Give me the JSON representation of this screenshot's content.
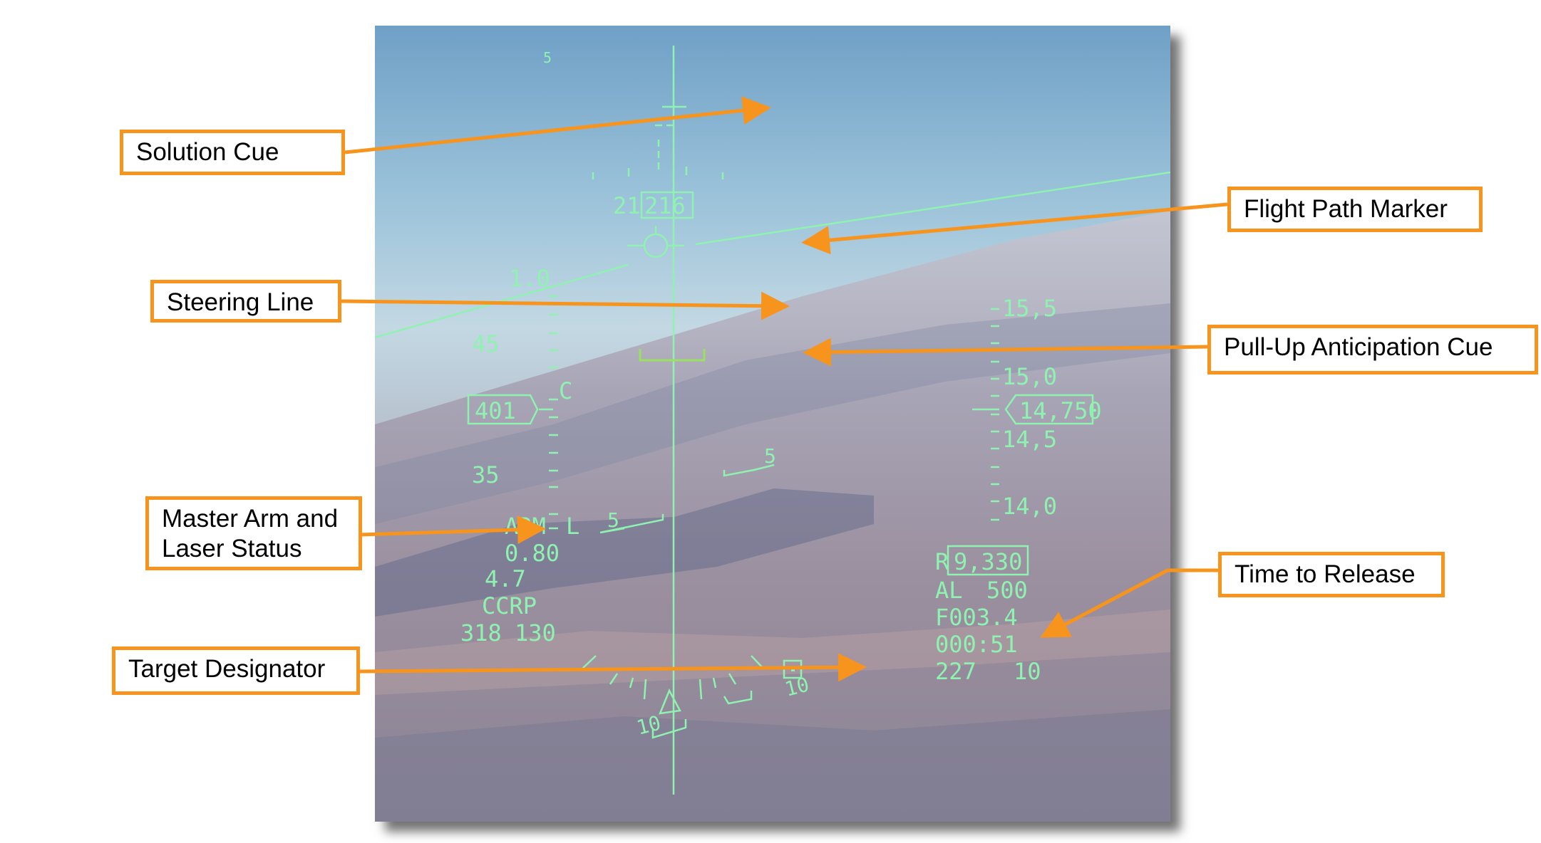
{
  "callouts": {
    "solution_cue": "Solution Cue",
    "flight_path_marker": "Flight Path Marker",
    "steering_line": "Steering Line",
    "pull_up_cue": "Pull-Up Anticipation Cue",
    "master_arm_line1": "Master Arm and",
    "master_arm_line2": "Laser Status",
    "time_to_release": "Time to Release",
    "target_designator": "Target Designator"
  },
  "hud": {
    "heading_mark": "5",
    "pitch_21": "21",
    "heading_box": "216",
    "normal_accel": "1.0",
    "speed_45": "45",
    "speed_caret": "C",
    "airspeed_box": "401",
    "speed_35": "35",
    "alt_155": "15,5",
    "alt_150": "15,0",
    "altitude_box": "14,750",
    "alt_145": "14,5",
    "alt_140": "14,0",
    "ladder_5_left": "5",
    "ladder_5_right": "5",
    "ladder_10_left": "10",
    "ladder_10_right": "10",
    "arm_status": "ARM",
    "laser_status": "L",
    "mach": "0.80",
    "g_load": "4.7",
    "mode": "CCRP",
    "bottom_left_1": "318",
    "bottom_left_2": "130",
    "range_label": "R",
    "range_box": "9,330",
    "al_label": "AL",
    "al_value": "500",
    "f_readout": "F003.4",
    "time_to_release": "000:51",
    "bottom_right_1": "227",
    "bottom_right_2": "10"
  },
  "colors": {
    "callout_orange": "#f7941d",
    "hud_green": "#8ff2b0",
    "pull_up_green": "#9be060"
  }
}
